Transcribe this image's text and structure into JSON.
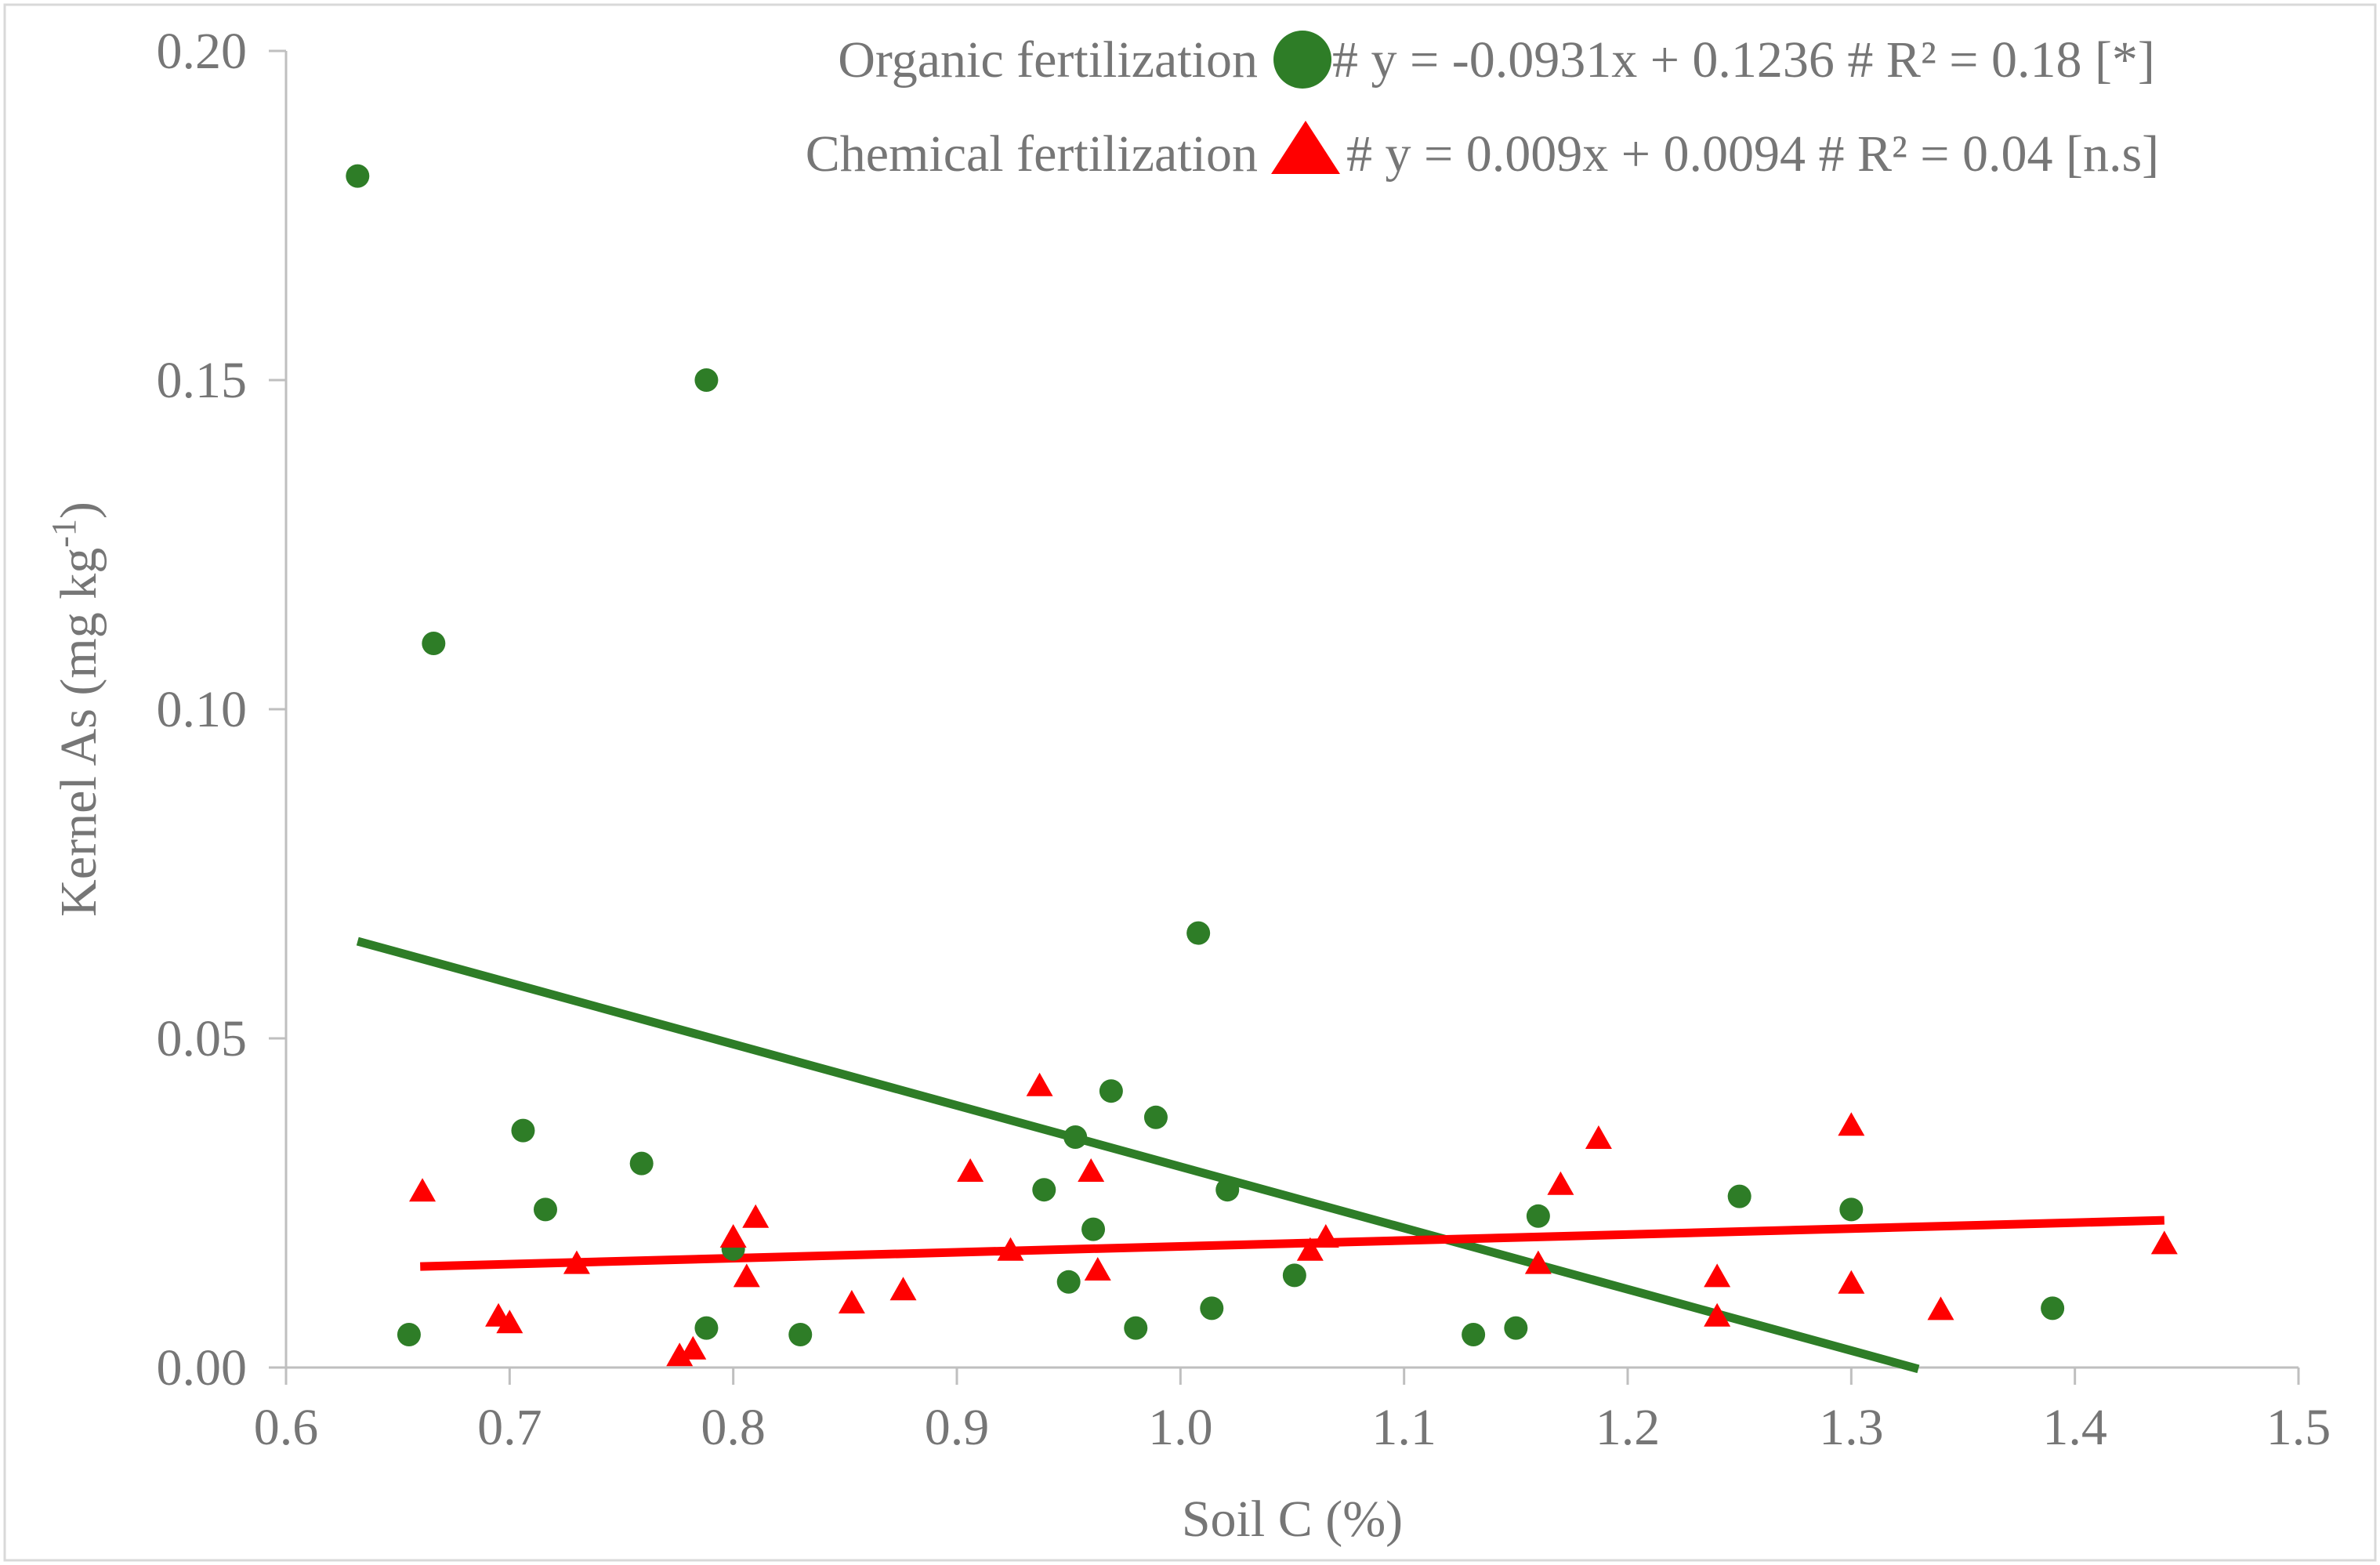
{
  "chart_data": {
    "type": "scatter",
    "title": "",
    "xlabel": "Soil C (%)",
    "ylabel_main": "Kernel As (mg kg",
    "ylabel_sup": "-1",
    "ylabel_end": ")",
    "xlim": [
      0.6,
      1.5
    ],
    "ylim": [
      0.0,
      0.2
    ],
    "x_ticks": [
      0.6,
      0.7,
      0.8,
      0.9,
      1.0,
      1.1,
      1.2,
      1.3,
      1.4,
      1.5
    ],
    "x_tick_labels": [
      "0.6",
      "0.7",
      "0.8",
      "0.9",
      "1.0",
      "1.1",
      "1.2",
      "1.3",
      "1.4",
      "1.5"
    ],
    "y_ticks": [
      0.0,
      0.05,
      0.1,
      0.15,
      0.2
    ],
    "y_tick_labels": [
      "0.00",
      "0.05",
      "0.10",
      "0.15",
      "0.20"
    ],
    "grid": false,
    "legend_position": "top-right",
    "series": [
      {
        "name": "Organic fertilization",
        "marker": "circle",
        "color": "#2e7d27",
        "equation_text": "# y = -0.0931x + 0.1236 # R² = 0.18 [*]",
        "trend": {
          "slope": -0.0931,
          "intercept": 0.1236,
          "x_range": [
            0.632,
            1.33
          ]
        },
        "points": [
          [
            0.632,
            0.181
          ],
          [
            0.655,
            0.005
          ],
          [
            0.666,
            0.11
          ],
          [
            0.706,
            0.036
          ],
          [
            0.716,
            0.024
          ],
          [
            0.759,
            0.031
          ],
          [
            0.788,
            0.15
          ],
          [
            0.788,
            0.006
          ],
          [
            0.8,
            0.018
          ],
          [
            0.83,
            0.005
          ],
          [
            0.939,
            0.027
          ],
          [
            0.95,
            0.013
          ],
          [
            0.953,
            0.035
          ],
          [
            0.961,
            0.021
          ],
          [
            0.969,
            0.042
          ],
          [
            0.98,
            0.006
          ],
          [
            0.989,
            0.038
          ],
          [
            1.008,
            0.066
          ],
          [
            1.014,
            0.009
          ],
          [
            1.021,
            0.027
          ],
          [
            1.051,
            0.014
          ],
          [
            1.131,
            0.005
          ],
          [
            1.15,
            0.006
          ],
          [
            1.16,
            0.023
          ],
          [
            1.25,
            0.026
          ],
          [
            1.3,
            0.024
          ],
          [
            1.39,
            0.009
          ]
        ]
      },
      {
        "name": "Chemical fertilization",
        "marker": "triangle",
        "color": "#ff0000",
        "equation_text": "# y = 0.009x + 0.0094 # R² = 0.04 [n.s]",
        "trend": {
          "slope": 0.009,
          "intercept": 0.0094,
          "x_range": [
            0.66,
            1.44
          ]
        },
        "points": [
          [
            0.661,
            0.027
          ],
          [
            0.695,
            0.008
          ],
          [
            0.7,
            0.007
          ],
          [
            0.73,
            0.016
          ],
          [
            0.776,
            0.002
          ],
          [
            0.782,
            0.003
          ],
          [
            0.8,
            0.02
          ],
          [
            0.806,
            0.014
          ],
          [
            0.81,
            0.023
          ],
          [
            0.853,
            0.01
          ],
          [
            0.876,
            0.012
          ],
          [
            0.906,
            0.03
          ],
          [
            0.924,
            0.018
          ],
          [
            0.937,
            0.043
          ],
          [
            0.96,
            0.03
          ],
          [
            0.963,
            0.015
          ],
          [
            1.058,
            0.018
          ],
          [
            1.065,
            0.02
          ],
          [
            1.16,
            0.016
          ],
          [
            1.17,
            0.028
          ],
          [
            1.187,
            0.035
          ],
          [
            1.24,
            0.008
          ],
          [
            1.24,
            0.014
          ],
          [
            1.3,
            0.037
          ],
          [
            1.3,
            0.013
          ],
          [
            1.34,
            0.009
          ],
          [
            1.44,
            0.019
          ]
        ]
      }
    ]
  }
}
